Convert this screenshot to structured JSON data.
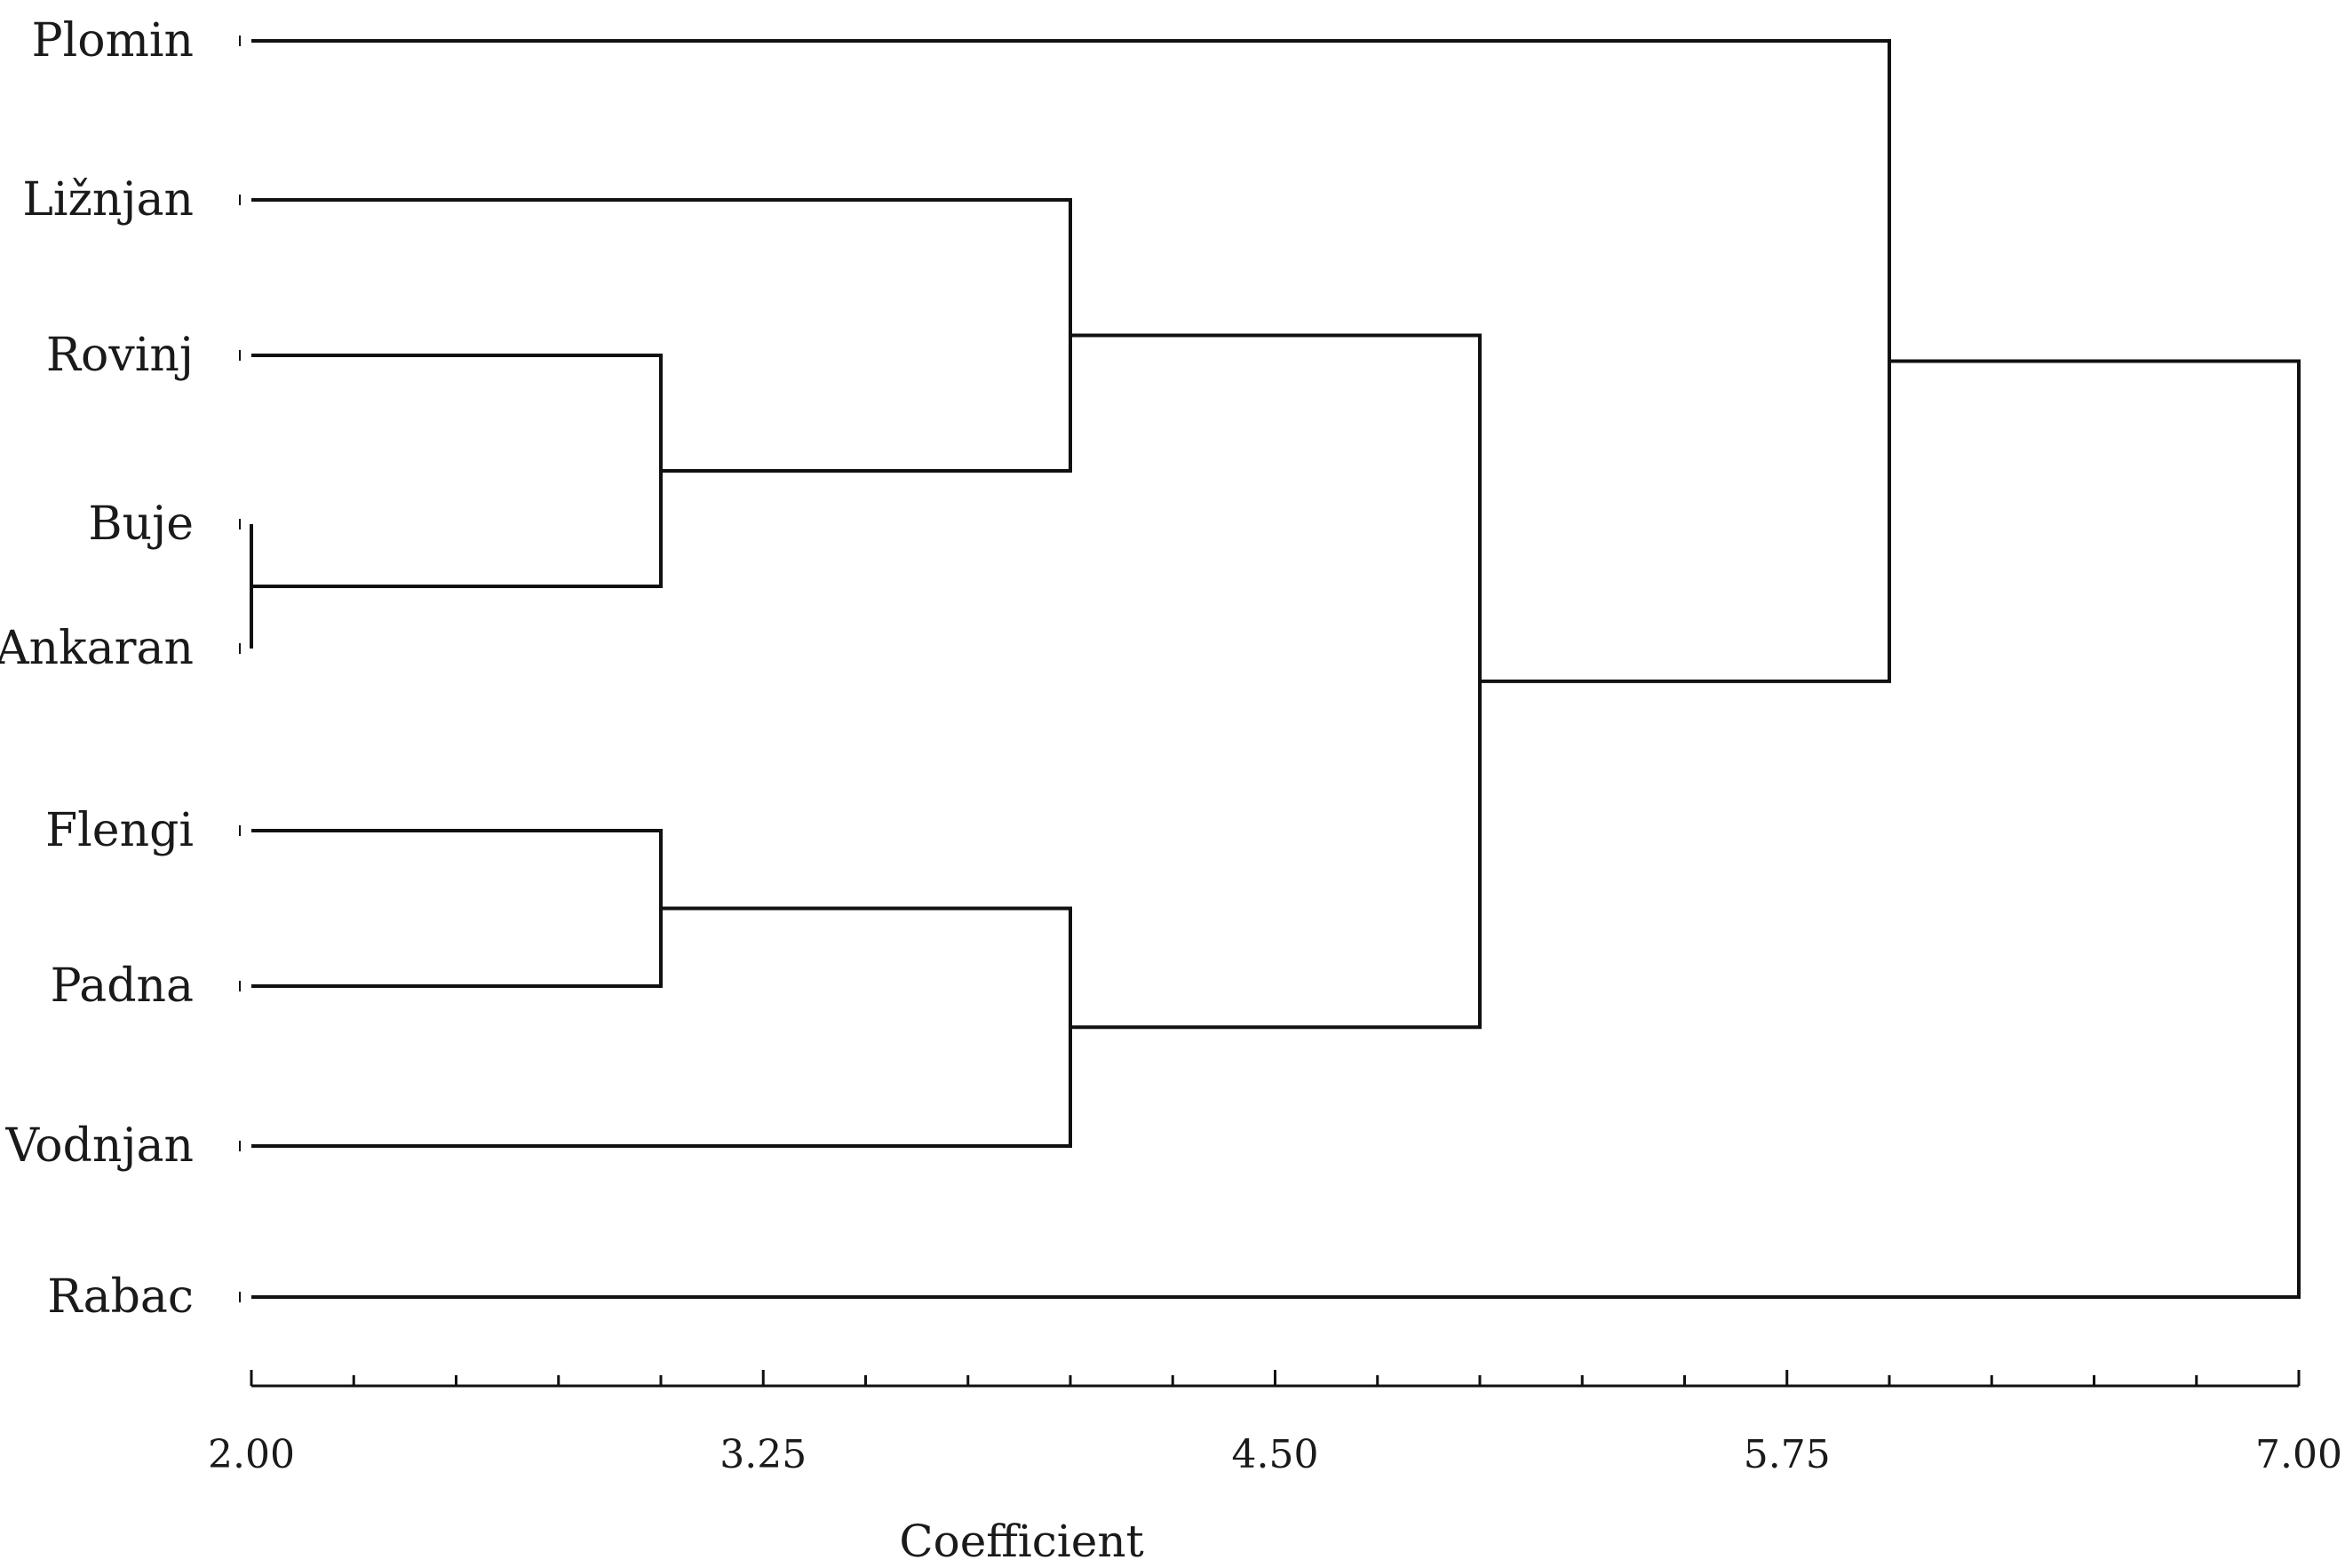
{
  "chart_data": {
    "type": "dendrogram",
    "xlabel": "Coefficient",
    "xlim": [
      2.0,
      7.0
    ],
    "major_ticks": [
      {
        "value": 2.0,
        "label": "2.00"
      },
      {
        "value": 3.25,
        "label": "3.25"
      },
      {
        "value": 4.5,
        "label": "4.50"
      },
      {
        "value": 5.75,
        "label": "5.75"
      },
      {
        "value": 7.0,
        "label": "7.00"
      }
    ],
    "minor_tick_step": 0.25,
    "leaves": [
      "Plomin",
      "Ližnjan",
      "Rovinj",
      "Buje",
      "Ankaran",
      "Flengi",
      "Padna",
      "Vodnjan",
      "Rabac"
    ],
    "merges": [
      {
        "id": "m1",
        "left": "Buje",
        "right": "Ankaran",
        "height": 2.0
      },
      {
        "id": "m2",
        "left": "Rovinj",
        "right": "m1",
        "height": 3.0
      },
      {
        "id": "m3",
        "left": "Flengi",
        "right": "Padna",
        "height": 3.0
      },
      {
        "id": "m4",
        "left": "Ližnjan",
        "right": "m2",
        "height": 4.0
      },
      {
        "id": "m5",
        "left": "m3",
        "right": "Vodnjan",
        "height": 4.0
      },
      {
        "id": "m6",
        "left": "m4",
        "right": "m5",
        "height": 5.0
      },
      {
        "id": "m7",
        "left": "Plomin",
        "right": "m6",
        "height": 6.0
      },
      {
        "id": "m8",
        "left": "m7",
        "right": "Rabac",
        "height": 7.0
      }
    ]
  }
}
